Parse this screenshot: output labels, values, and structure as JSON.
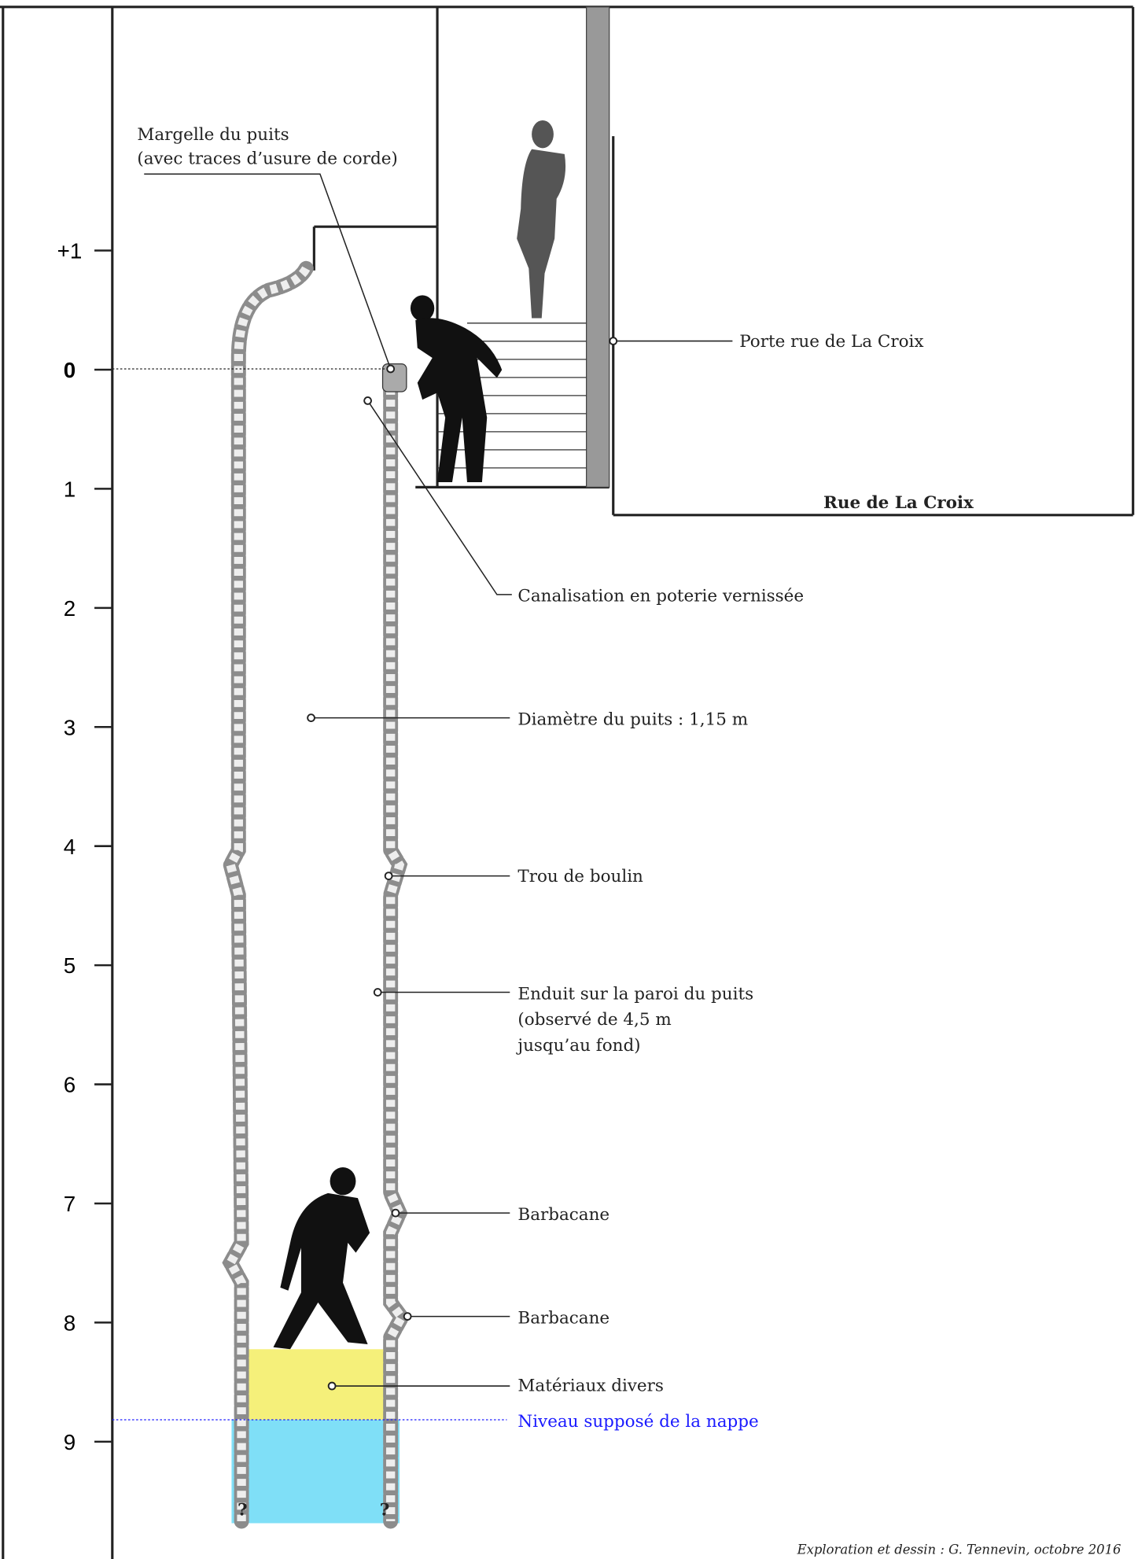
{
  "scale": {
    "labels": [
      "+1",
      "0",
      "1",
      "2",
      "3",
      "4",
      "5",
      "6",
      "7",
      "8",
      "9"
    ]
  },
  "annotations": {
    "margelle": [
      "Margelle du puits",
      "(avec traces d’usure de corde)"
    ],
    "porte": "Porte rue de La Croix",
    "canalisation": "Canalisation en poterie vernissée",
    "diametre": "Diamètre du puits : 1,15 m",
    "boulin": "Trou de boulin",
    "enduit": [
      "Enduit sur la paroi du puits",
      "(observé de 4,5 m",
      "jusqu’au fond)"
    ],
    "barbacane1": "Barbacane",
    "barbacane2": "Barbacane",
    "materiaux": "Matériaux divers",
    "nappe": "Niveau supposé de la nappe"
  },
  "street": "Rue de La Croix",
  "unknown": [
    "?",
    "?"
  ],
  "credit": "Exploration et dessin : G. Tennevin, octobre 2016"
}
